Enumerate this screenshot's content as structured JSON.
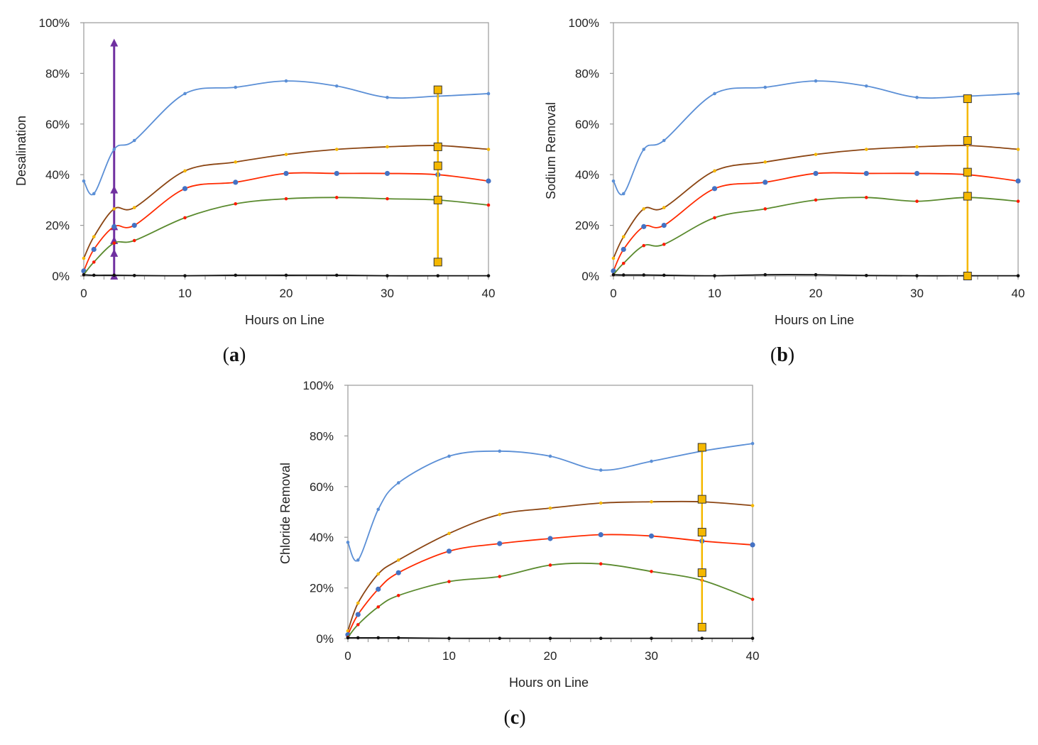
{
  "chart_data": [
    {
      "id": "a",
      "type": "line",
      "caption_letter": "a",
      "xlabel": "Hours on Line",
      "ylabel": "Desalination",
      "xlim": [
        0,
        40
      ],
      "ylim": [
        0,
        100
      ],
      "xticks": [
        "0",
        "10",
        "20",
        "30",
        "40"
      ],
      "yticks": [
        "0%",
        "20%",
        "40%",
        "60%",
        "80%",
        "100%"
      ],
      "x": [
        0,
        1,
        3,
        5,
        10,
        15,
        20,
        25,
        30,
        35,
        40
      ],
      "series": [
        {
          "name": "blue",
          "color": "#5b8fd6",
          "marker": "#5b8fd6",
          "values": [
            37.5,
            32.5,
            50,
            53.5,
            72,
            74.5,
            77,
            75,
            70.5,
            71,
            72
          ]
        },
        {
          "name": "brown",
          "color": "#8b4513",
          "marker": "#f5b800",
          "values": [
            7,
            15.5,
            26.5,
            27,
            41.5,
            45,
            48,
            50,
            51,
            51.5,
            50
          ]
        },
        {
          "name": "red",
          "color": "#ff2a00",
          "marker": "#4472c4",
          "values": [
            2,
            10.5,
            19.5,
            20,
            34.5,
            37,
            40.5,
            40.5,
            40.5,
            40,
            37.5
          ]
        },
        {
          "name": "green",
          "color": "#5a8a2e",
          "marker": "#ff1a00",
          "values": [
            0.5,
            5.5,
            13,
            14,
            23,
            28.5,
            30.5,
            31,
            30.5,
            30,
            28
          ]
        },
        {
          "name": "black",
          "color": "#111111",
          "marker": "#111111",
          "values": [
            0.5,
            0.3,
            0.3,
            0.2,
            0.1,
            0.3,
            0.3,
            0.3,
            0.1,
            0.1,
            0.1
          ]
        }
      ],
      "errorbar": {
        "x": 35,
        "values": [
          73.5,
          51,
          43.5,
          30,
          5.5
        ],
        "color": "#f5b800"
      },
      "annotation": {
        "x": 3,
        "markers": [
          0,
          9,
          14,
          19.5,
          34,
          92
        ],
        "color": "#7030a0"
      }
    },
    {
      "id": "b",
      "type": "line",
      "caption_letter": "b",
      "xlabel": "Hours on Line",
      "ylabel": "Sodium Removal",
      "xlim": [
        0,
        40
      ],
      "ylim": [
        0,
        100
      ],
      "xticks": [
        "0",
        "10",
        "20",
        "30",
        "40"
      ],
      "yticks": [
        "0%",
        "20%",
        "40%",
        "60%",
        "80%",
        "100%"
      ],
      "x": [
        0,
        1,
        3,
        5,
        10,
        15,
        20,
        25,
        30,
        35,
        40
      ],
      "series": [
        {
          "name": "blue",
          "color": "#5b8fd6",
          "marker": "#5b8fd6",
          "values": [
            37.5,
            32.5,
            50,
            53.5,
            72,
            74.5,
            77,
            75,
            70.5,
            71,
            72
          ]
        },
        {
          "name": "brown",
          "color": "#8b4513",
          "marker": "#f5b800",
          "values": [
            7,
            15.5,
            26.5,
            27,
            41.5,
            45,
            48,
            50,
            51,
            51.5,
            50
          ]
        },
        {
          "name": "red",
          "color": "#ff2a00",
          "marker": "#4472c4",
          "values": [
            2,
            10.5,
            19.5,
            20,
            34.5,
            37,
            40.5,
            40.5,
            40.5,
            40,
            37.5
          ]
        },
        {
          "name": "green",
          "color": "#5a8a2e",
          "marker": "#ff1a00",
          "values": [
            0.5,
            5,
            12,
            12.5,
            23,
            26.5,
            30,
            31,
            29.5,
            31,
            29.5
          ]
        },
        {
          "name": "black",
          "color": "#111111",
          "marker": "#111111",
          "values": [
            0.5,
            0.4,
            0.4,
            0.3,
            0.1,
            0.5,
            0.5,
            0.2,
            0.1,
            0.1,
            0.1
          ]
        }
      ],
      "errorbar": {
        "x": 35,
        "values": [
          70,
          53.5,
          41,
          31.5,
          0
        ],
        "color": "#f5b800"
      }
    },
    {
      "id": "c",
      "type": "line",
      "caption_letter": "c",
      "xlabel": "Hours on Line",
      "ylabel": "Chloride Removal",
      "xlim": [
        0,
        40
      ],
      "ylim": [
        0,
        100
      ],
      "xticks": [
        "0",
        "10",
        "20",
        "30",
        "40"
      ],
      "yticks": [
        "0%",
        "20%",
        "40%",
        "60%",
        "80%",
        "100%"
      ],
      "x": [
        0,
        1,
        3,
        5,
        10,
        15,
        20,
        25,
        30,
        35,
        40
      ],
      "series": [
        {
          "name": "blue",
          "color": "#5b8fd6",
          "marker": "#5b8fd6",
          "values": [
            38,
            31,
            51,
            61.5,
            72,
            74,
            72,
            66.5,
            70,
            74,
            77
          ]
        },
        {
          "name": "brown",
          "color": "#8b4513",
          "marker": "#f5b800",
          "values": [
            3,
            14,
            25.5,
            31,
            41.5,
            49,
            51.5,
            53.5,
            54,
            54,
            52.5
          ]
        },
        {
          "name": "red",
          "color": "#ff2a00",
          "marker": "#4472c4",
          "values": [
            1.5,
            9.5,
            19.5,
            26,
            34.5,
            37.5,
            39.5,
            41,
            40.5,
            38.5,
            37
          ]
        },
        {
          "name": "green",
          "color": "#5a8a2e",
          "marker": "#ff1a00",
          "values": [
            0.5,
            5.5,
            12.5,
            17,
            22.5,
            24.5,
            29,
            29.5,
            26.5,
            23,
            15.5
          ]
        },
        {
          "name": "black",
          "color": "#111111",
          "marker": "#111111",
          "values": [
            0.3,
            0.3,
            0.3,
            0.3,
            0.1,
            0.1,
            0.1,
            0.1,
            0.1,
            0.1,
            0.1
          ]
        }
      ],
      "errorbar": {
        "x": 35,
        "values": [
          75.5,
          55,
          42,
          26,
          4.5
        ],
        "color": "#f5b800"
      }
    }
  ]
}
